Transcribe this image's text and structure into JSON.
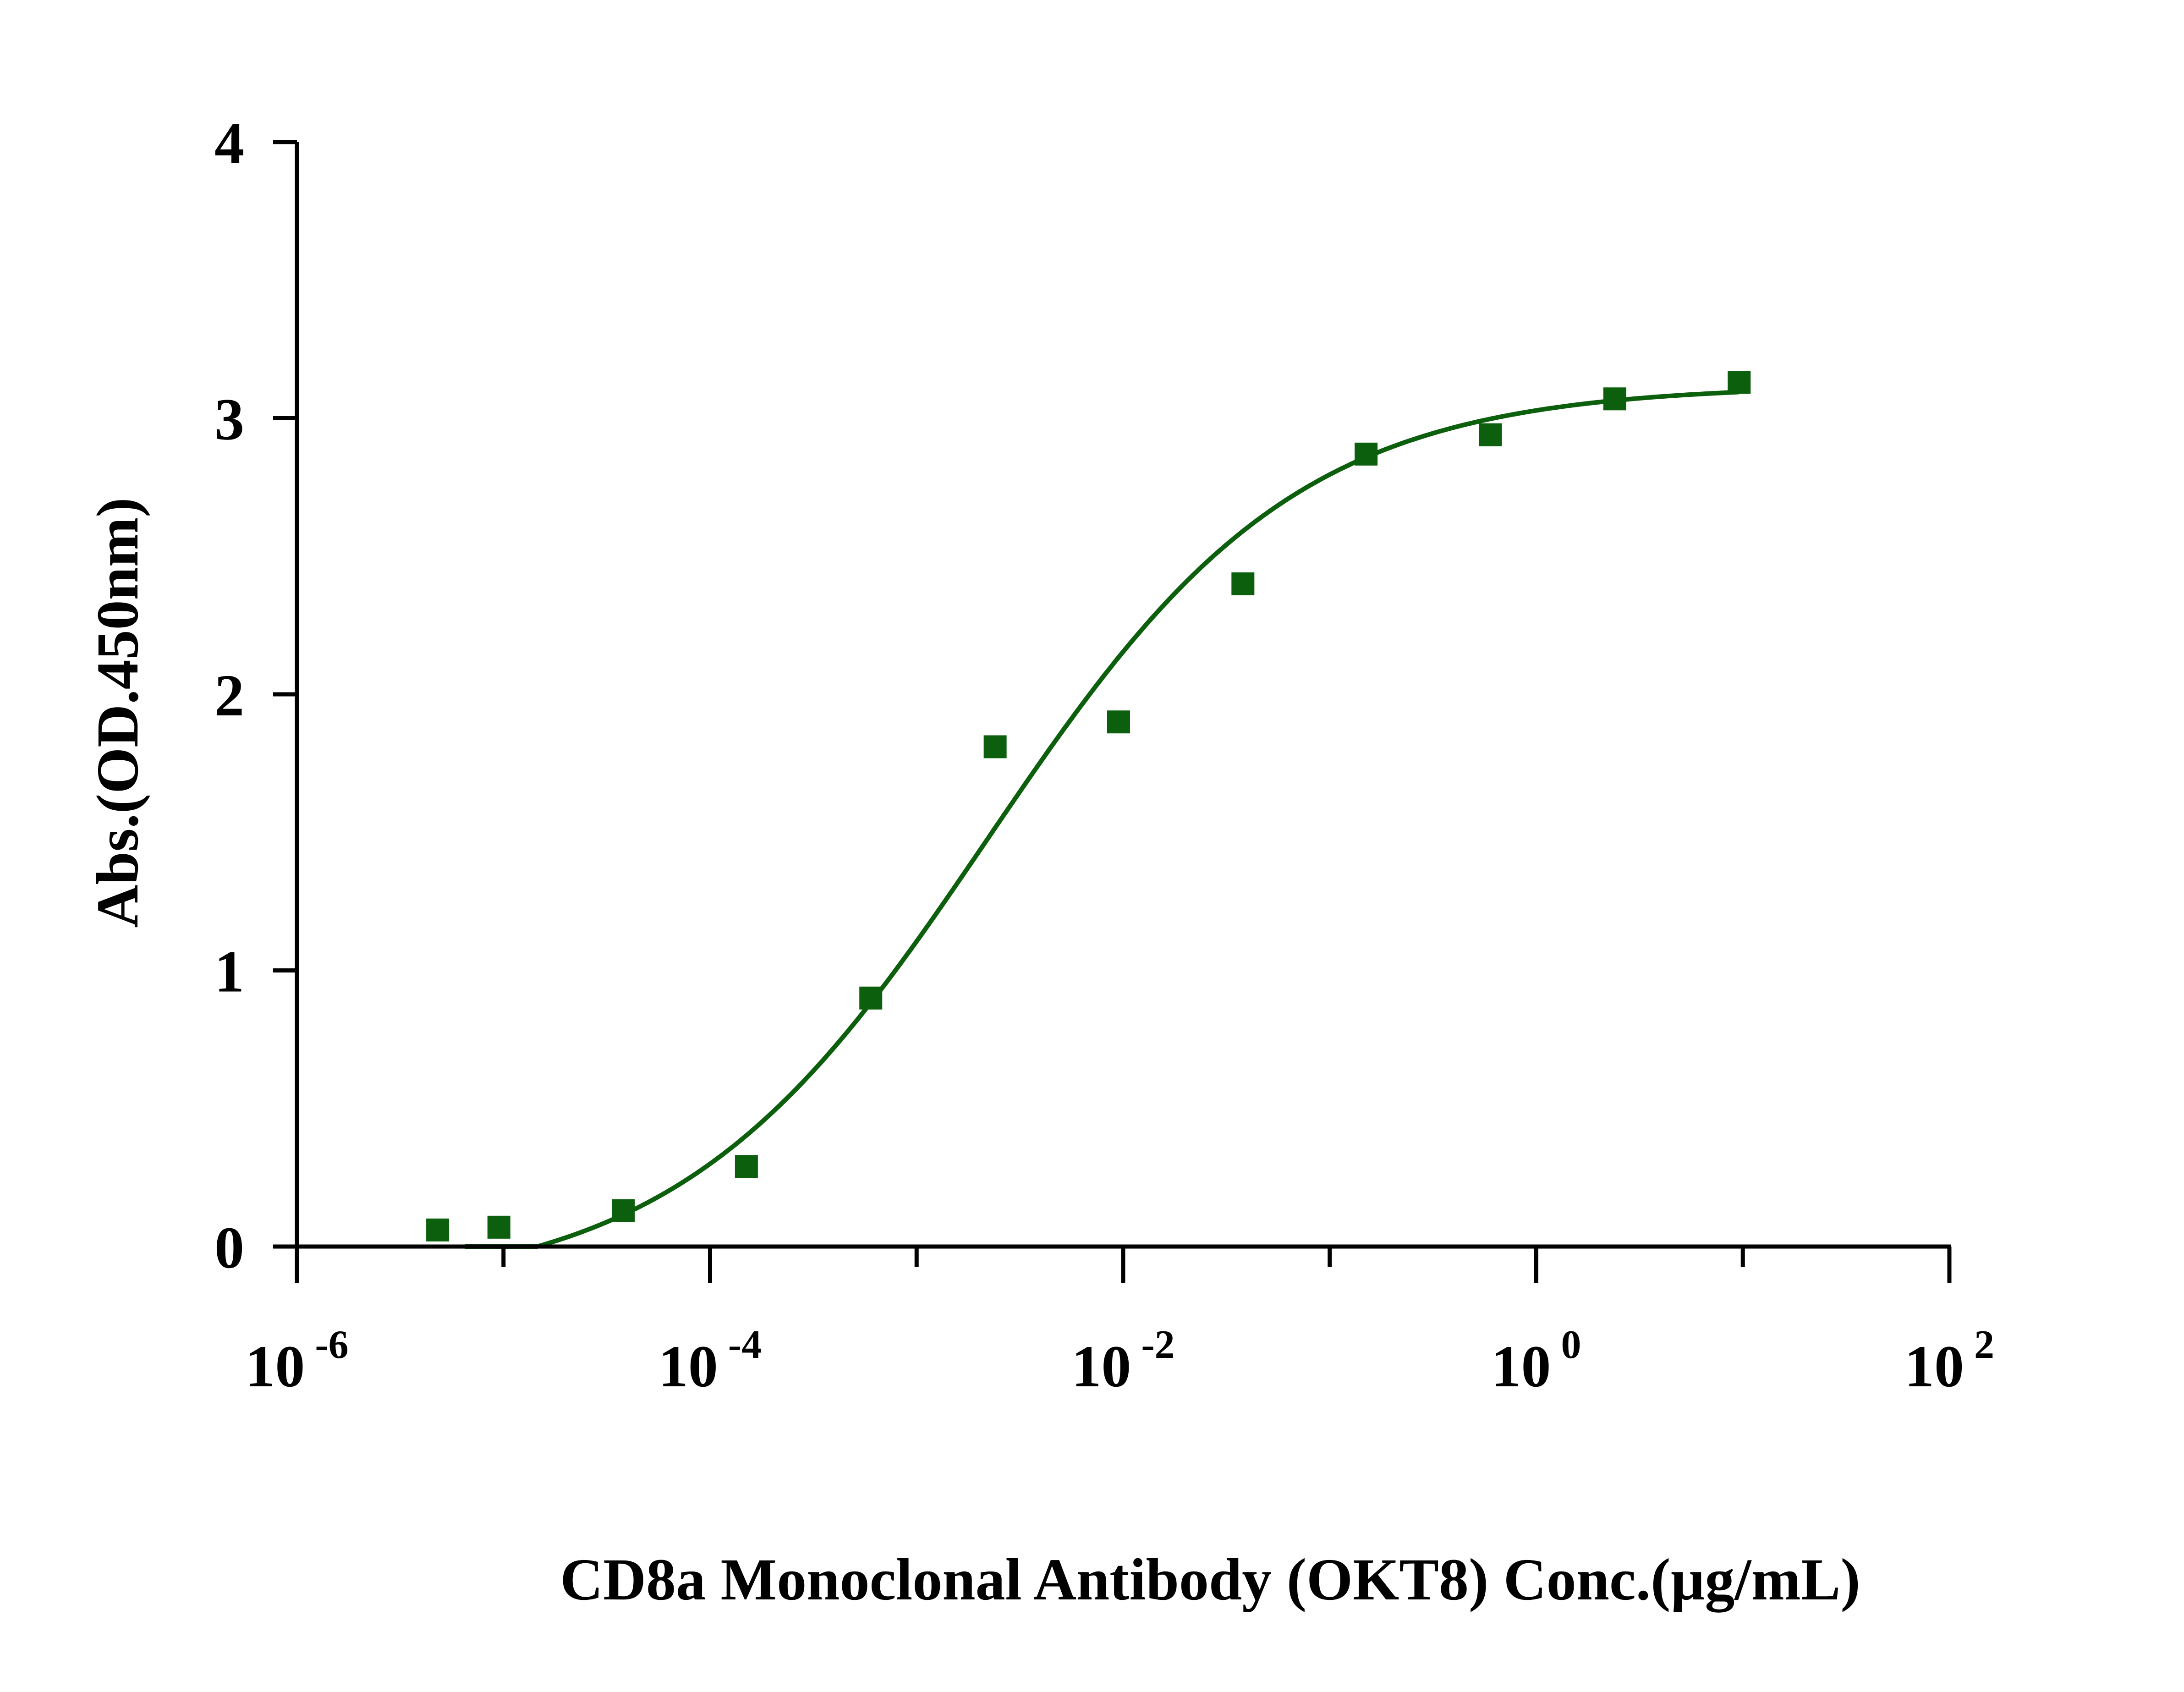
{
  "colors": {
    "series": "#0c5f0c",
    "axis": "#000000",
    "background": "#ffffff"
  },
  "chart_data": {
    "type": "scatter",
    "xlabel": "CD8a Monoclonal Antibody (OKT8) Conc.(µg/mL)",
    "ylabel": "Abs.(OD.450nm)",
    "x_scale": "log",
    "xlim": [
      1e-06,
      100
    ],
    "ylim": [
      0,
      4
    ],
    "x_ticks": [
      {
        "base": "10",
        "exp": "-6",
        "value": 1e-06
      },
      {
        "base": "10",
        "exp": "-4",
        "value": 0.0001
      },
      {
        "base": "10",
        "exp": "-2",
        "value": 0.01
      },
      {
        "base": "10",
        "exp": "0",
        "value": 1
      },
      {
        "base": "10",
        "exp": "2",
        "value": 100
      }
    ],
    "x_minor_ticks": [
      1e-05,
      0.001,
      0.1,
      10
    ],
    "y_ticks": [
      {
        "label": "0",
        "value": 0
      },
      {
        "label": "1",
        "value": 1
      },
      {
        "label": "2",
        "value": 2
      },
      {
        "label": "3",
        "value": 3
      },
      {
        "label": "4",
        "value": 4
      }
    ],
    "grid": false,
    "series": [
      {
        "marker": "square",
        "points": [
          {
            "x": 4.8e-06,
            "y": 0.06
          },
          {
            "x": 9.5e-06,
            "y": 0.07
          },
          {
            "x": 3.8e-05,
            "y": 0.13
          },
          {
            "x": 0.00015,
            "y": 0.29
          },
          {
            "x": 0.0006,
            "y": 0.9
          },
          {
            "x": 0.0024,
            "y": 1.81
          },
          {
            "x": 0.0095,
            "y": 1.9
          },
          {
            "x": 0.038,
            "y": 2.4
          },
          {
            "x": 0.15,
            "y": 2.87
          },
          {
            "x": 0.6,
            "y": 2.94
          },
          {
            "x": 2.4,
            "y": 3.07
          },
          {
            "x": 9.6,
            "y": 3.13
          }
        ],
        "fit": {
          "model": "4PL",
          "bottom": -0.17,
          "top": 3.12,
          "ec50": 0.0022,
          "hill": 0.58,
          "x_range": [
            6.5e-06,
            9.6
          ]
        }
      }
    ]
  }
}
